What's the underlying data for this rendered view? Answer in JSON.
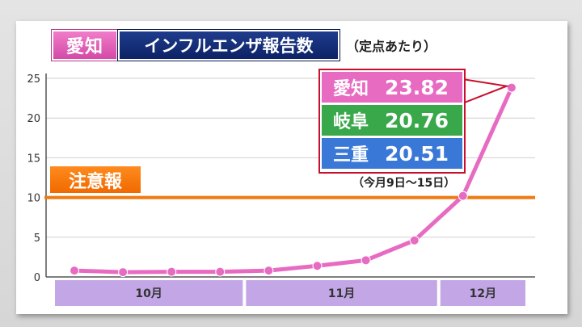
{
  "header": {
    "region_label": "愛知",
    "title": "インフルエンザ報告数",
    "subtitle": "（定点あたり）"
  },
  "alert": {
    "label": "注意報",
    "threshold": 10,
    "color": "#f07a10"
  },
  "legend": {
    "items": [
      {
        "name": "愛知",
        "value": "23.82",
        "color": "#e86bc2"
      },
      {
        "name": "岐阜",
        "value": "20.76",
        "color": "#39a84a"
      },
      {
        "name": "三重",
        "value": "20.51",
        "color": "#3a78d8"
      }
    ],
    "border_color": "#c8102e",
    "period": "（今月9日～15日）"
  },
  "chart_data": {
    "type": "line",
    "title": "インフルエンザ報告数",
    "xlabel": "",
    "ylabel": "",
    "ylim": [
      0,
      25
    ],
    "yticks": [
      0,
      5,
      10,
      15,
      20,
      25
    ],
    "grid": true,
    "series": [
      {
        "name": "愛知",
        "color": "#e86bc2",
        "values": [
          0.8,
          0.6,
          0.65,
          0.65,
          0.8,
          1.4,
          2.1,
          4.6,
          10.2,
          23.82
        ]
      }
    ],
    "month_bands": [
      {
        "label": "10月",
        "weeks": 4
      },
      {
        "label": "11月",
        "weeks": 4
      },
      {
        "label": "12月",
        "weeks": 2
      }
    ],
    "band_color": "#c3a6e6"
  }
}
